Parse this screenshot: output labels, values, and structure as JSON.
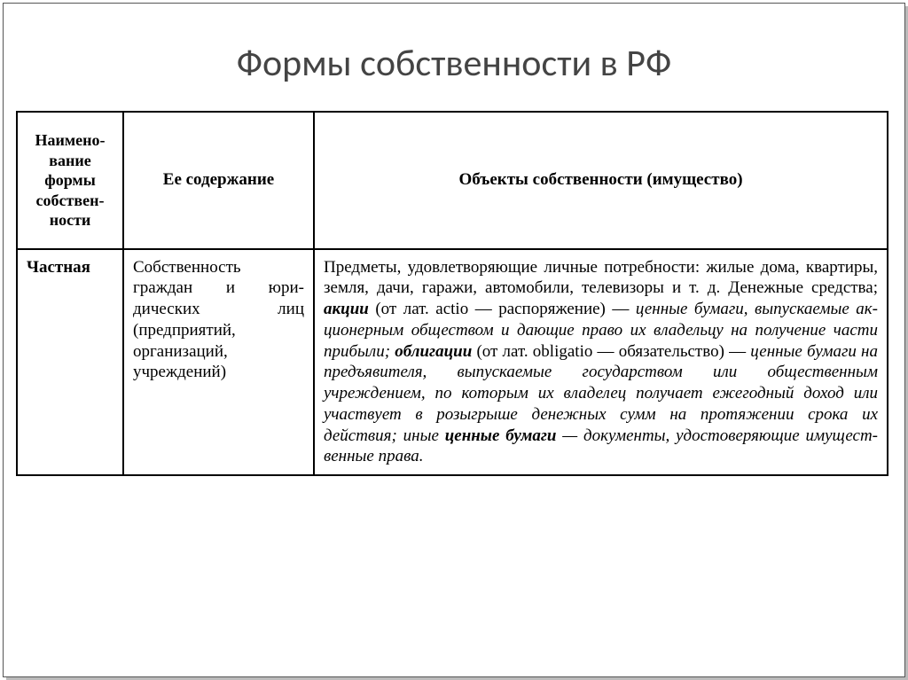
{
  "title": "Формы собственности в РФ",
  "table": {
    "headers": {
      "name": "Наимено­вание формы собствен­ности",
      "content": "Ее содержание",
      "objects": "Объекты собственности (имущество)"
    },
    "row": {
      "name": "Частная",
      "content": "Собственность граждан и юри­дических лиц (предприятий, организаций, учреждений)",
      "obj_plain1": "Предметы, удовлетворяющие лич­ные потребности: жилые дома, квартиры, земля, дачи, гаражи, автомобили, телевизоры и т. д. Денежные средства; ",
      "akcii": "акции",
      "obj_paren1": " (от лат. actio — распоряжение) — ",
      "obj_it1": "ценные бумаги, выпускаемые ак­ционерным обществом и дающие право их владельцу на получение части прибыли; ",
      "obligacii": "облигации",
      "obj_paren2": " (от лат. obligatio — обязательство) — ",
      "obj_it2": "ценные бумаги на предъявителя, выпускаемые государством или общественным учреждением, по которым их владелец получает ежегодный доход или участвует в розыгрыше денежных сумм на протяжении срока их действия;",
      "obj_it3": " иные ",
      "cennye": "ценные бумаги",
      "obj_it4": " — докумен­ты, удостоверяющие имущест­венные права."
    }
  }
}
